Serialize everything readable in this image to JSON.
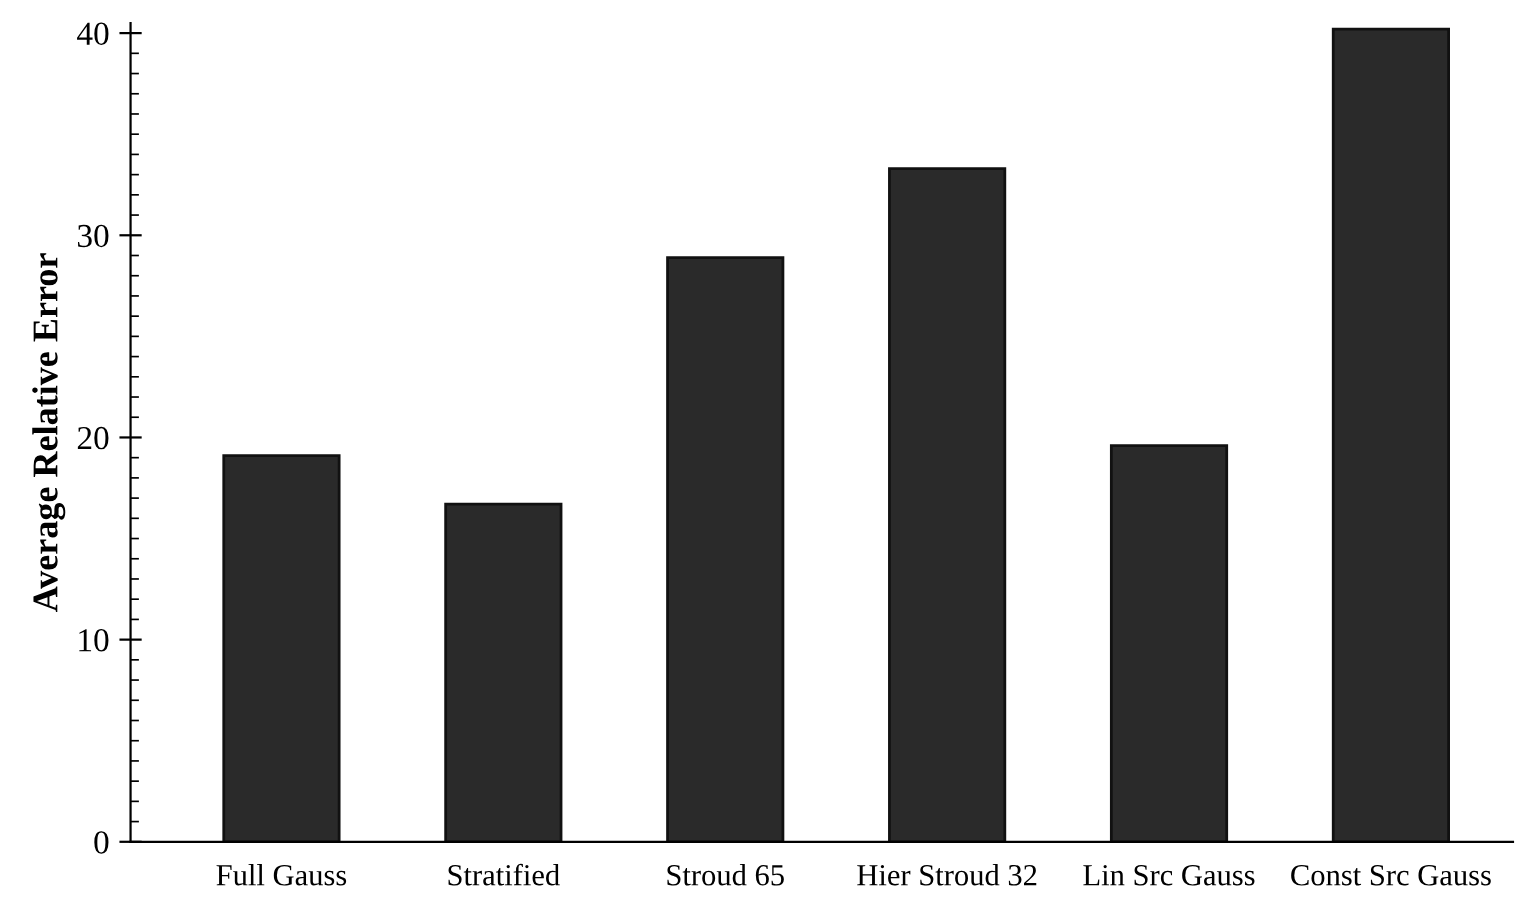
{
  "chart_data": {
    "type": "bar",
    "ylabel": "Average Relative Error",
    "categories": [
      "Full Gauss",
      "Stratified",
      "Stroud 65",
      "Hier Stroud 32",
      "Lin Src Gauss",
      "Const Src Gauss"
    ],
    "values": [
      19.1,
      16.7,
      28.9,
      33.3,
      19.6,
      40.2
    ],
    "color": "#2a2a2a",
    "ylim": [
      0,
      40.5
    ],
    "yticks": [
      0,
      10,
      20,
      30,
      40
    ],
    "grid": false
  }
}
